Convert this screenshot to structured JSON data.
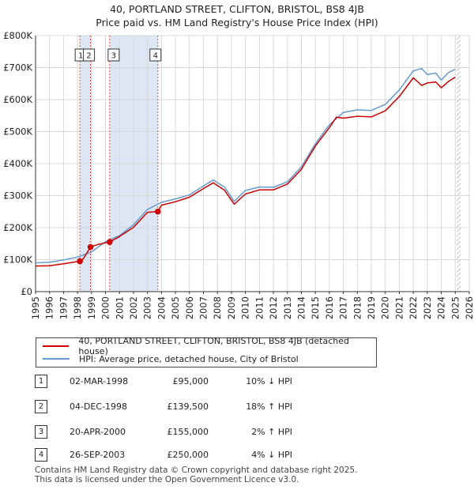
{
  "title": {
    "line1": "40, PORTLAND STREET, CLIFTON, BRISTOL, BS8 4JB",
    "line2": "Price paid vs. HM Land Registry's House Price Index (HPI)"
  },
  "colors": {
    "property": "#cc0000",
    "hpi": "#6699cc",
    "shade": "#dde6f5",
    "grid": "#d8d8d8",
    "vline": "#dd4444"
  },
  "chart_data": {
    "type": "line",
    "title": "40, PORTLAND STREET, CLIFTON, BRISTOL, BS8 4JB — Price paid vs. HM Land Registry's House Price Index (HPI)",
    "xlabel": "",
    "ylabel": "",
    "xlim": [
      1995,
      2026
    ],
    "ylim": [
      0,
      800000
    ],
    "x_ticks": [
      1995,
      1996,
      1997,
      1998,
      1999,
      2000,
      2001,
      2002,
      2003,
      2004,
      2005,
      2006,
      2007,
      2008,
      2009,
      2010,
      2011,
      2012,
      2013,
      2014,
      2015,
      2016,
      2017,
      2018,
      2019,
      2020,
      2021,
      2022,
      2023,
      2024,
      2025,
      2026
    ],
    "y_ticks": [
      0,
      100000,
      200000,
      300000,
      400000,
      500000,
      600000,
      700000,
      800000
    ],
    "y_tick_labels": [
      "£0",
      "£100K",
      "£200K",
      "£300K",
      "£400K",
      "£500K",
      "£600K",
      "£700K",
      "£800K"
    ],
    "grid": true,
    "future_hatch_from": 2025.1,
    "series": [
      {
        "name": "40, PORTLAND STREET, CLIFTON, BRISTOL, BS8 4JB (detached house)",
        "color": "#cc0000",
        "x": [
          1995,
          1996,
          1997,
          1998.17,
          1998.4,
          1998.93,
          1999.5,
          2000.3,
          2001,
          2002,
          2003,
          2003.74,
          2004,
          2005,
          2006,
          2007,
          2007.7,
          2008.5,
          2009.2,
          2010,
          2011,
          2012,
          2013,
          2014,
          2015,
          2016,
          2016.5,
          2017,
          2018,
          2019,
          2020,
          2021,
          2022,
          2022.6,
          2023,
          2023.6,
          2024,
          2024.5,
          2025
        ],
        "y": [
          80000,
          81000,
          87000,
          95000,
          102000,
          139500,
          148000,
          155000,
          172000,
          201000,
          248000,
          250000,
          270000,
          281000,
          295000,
          322000,
          340000,
          317000,
          273000,
          305000,
          318000,
          318000,
          336000,
          382000,
          455000,
          512000,
          545000,
          542000,
          548000,
          546000,
          565000,
          610000,
          668000,
          644000,
          652000,
          655000,
          637000,
          656000,
          670000
        ]
      },
      {
        "name": "HPI: Average price, detached house, City of Bristol",
        "color": "#6699cc",
        "x": [
          1995,
          1996,
          1997,
          1998,
          1999,
          2000,
          2001,
          2002,
          2003,
          2004,
          2005,
          2006,
          2007,
          2007.7,
          2008.5,
          2009.2,
          2010,
          2011,
          2012,
          2013,
          2014,
          2015,
          2016,
          2017,
          2018,
          2019,
          2020,
          2021,
          2022,
          2022.6,
          2023,
          2023.6,
          2024,
          2024.5,
          2025
        ],
        "y": [
          90000,
          92000,
          99000,
          108000,
          124000,
          156000,
          175000,
          209000,
          257000,
          279000,
          290000,
          302000,
          330000,
          349000,
          327000,
          282000,
          316000,
          327000,
          326000,
          343000,
          390000,
          462000,
          521000,
          560000,
          568000,
          566000,
          585000,
          630000,
          690000,
          697000,
          678000,
          683000,
          661000,
          684000,
          695000
        ]
      }
    ],
    "transactions": [
      {
        "num": "1",
        "date": "02-MAR-1998",
        "price": "£95,000",
        "hpi": "10% ↓ HPI",
        "x": 1998.17,
        "y": 95000
      },
      {
        "num": "2",
        "date": "04-DEC-1998",
        "price": "£139,500",
        "hpi": "18% ↑ HPI",
        "x": 1998.93,
        "y": 139500
      },
      {
        "num": "3",
        "date": "20-APR-2000",
        "price": "£155,000",
        "hpi": "2% ↑ HPI",
        "x": 2000.3,
        "y": 155000
      },
      {
        "num": "4",
        "date": "26-SEP-2003",
        "price": "£250,000",
        "hpi": "4% ↓ HPI",
        "x": 2003.74,
        "y": 250000
      }
    ]
  },
  "legend": {
    "property_label": "40, PORTLAND STREET, CLIFTON, BRISTOL, BS8 4JB (detached house)",
    "hpi_label": "HPI: Average price, detached house, City of Bristol"
  },
  "footer": {
    "line1": "Contains HM Land Registry data © Crown copyright and database right 2025.",
    "line2": "This data is licensed under the Open Government Licence v3.0."
  }
}
